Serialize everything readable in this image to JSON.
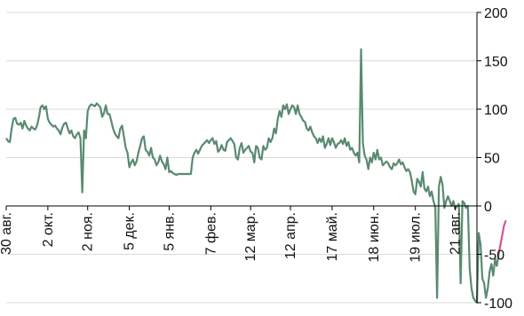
{
  "chart_data": {
    "type": "line",
    "title": "",
    "xlabel": "",
    "ylabel": "",
    "ylim": [
      -100,
      200
    ],
    "y_axis_side": "right",
    "y_ticks": [
      200,
      150,
      100,
      50,
      0,
      -50,
      -100
    ],
    "y_tick_labels": [
      "200",
      "150",
      "100",
      "50",
      "0",
      "-50",
      "-100"
    ],
    "grid": "horizontal",
    "x_tick_labels": [
      "30 авг.",
      "2 окт.",
      "2 ноя.",
      "5 дек.",
      "5 янв.",
      "7 фев.",
      "12 мар.",
      "12 апр.",
      "17 май.",
      "18 июн.",
      "19 июл.",
      "21 авг."
    ],
    "x_index_range": [
      0,
      260
    ],
    "x_tick_positions": [
      0,
      23,
      45,
      68,
      90,
      113,
      135,
      157,
      180,
      203,
      226,
      248
    ],
    "colors": {
      "main_line": "#5a8a70",
      "end_segment": "#d9538f",
      "grid": "#d9d9d9",
      "axis": "#000000"
    },
    "series": [
      {
        "values": [
          70,
          67,
          66,
          80,
          90,
          91,
          85,
          84,
          86,
          80,
          88,
          83,
          80,
          78,
          82,
          80,
          79,
          83,
          91,
          102,
          104,
          100,
          103,
          90,
          86,
          84,
          82,
          83,
          80,
          78,
          74,
          81,
          85,
          86,
          80,
          75,
          78,
          72,
          70,
          74,
          76,
          70,
          14,
          78,
          70,
          98,
          103,
          105,
          104,
          103,
          106,
          104,
          102,
          92,
          96,
          104,
          95,
          95,
          88,
          80,
          75,
          72,
          70,
          80,
          83,
          72,
          60,
          55,
          40,
          45,
          48,
          42,
          46,
          55,
          62,
          70,
          72,
          58,
          56,
          52,
          60,
          50,
          48,
          42,
          45,
          52,
          46,
          43,
          38,
          50,
          35,
          36,
          34,
          33,
          32,
          33,
          33,
          33,
          33,
          33,
          33,
          33,
          33,
          50,
          55,
          58,
          54,
          58,
          62,
          64,
          66,
          68,
          65,
          68,
          70,
          64,
          67,
          56,
          58,
          63,
          58,
          57,
          66,
          68,
          70,
          67,
          64,
          50,
          48,
          60,
          65,
          55,
          58,
          60,
          62,
          56,
          55,
          45,
          62,
          60,
          50,
          48,
          62,
          58,
          60,
          70,
          66,
          70,
          80,
          75,
          90,
          98,
          92,
          104,
          100,
          105,
          95,
          100,
          104,
          102,
          95,
          104,
          95,
          92,
          88,
          87,
          80,
          78,
          82,
          76,
          72,
          70,
          65,
          70,
          66,
          72,
          60,
          64,
          70,
          63,
          70,
          66,
          60,
          64,
          65,
          68,
          64,
          70,
          62,
          66,
          58,
          60,
          55,
          52,
          55,
          45,
          162,
          65,
          52,
          48,
          38,
          50,
          45,
          55,
          48,
          58,
          48,
          50,
          42,
          44,
          46,
          44,
          40,
          38,
          44,
          42,
          44,
          48,
          43,
          45,
          40,
          36,
          38,
          35,
          26,
          15,
          12,
          28,
          25,
          20,
          35,
          18,
          15,
          20,
          10,
          15,
          5,
          -1,
          -95,
          20,
          30,
          22,
          -2,
          5,
          10,
          5,
          0,
          5,
          -3,
          0,
          2,
          -80,
          5,
          3,
          -2,
          0,
          -65,
          -85,
          -95,
          -98,
          -100,
          -28,
          -40,
          -75,
          -80,
          -95,
          -85,
          -68,
          -60,
          -72,
          -55,
          -62,
          -50
        ]
      },
      {
        "values": [
          -50,
          -40,
          -30,
          -20,
          -15
        ]
      }
    ]
  },
  "y_axis_labels": [
    "200",
    "150",
    "100",
    "50",
    "0",
    "-50",
    "-100"
  ],
  "x_axis_labels": [
    "30 авг.",
    "2 окт.",
    "2 ноя.",
    "5 дек.",
    "5 янв.",
    "7 фев.",
    "12 мар.",
    "12 апр.",
    "17 май.",
    "18 июн.",
    "19 июл.",
    "21 авг."
  ]
}
